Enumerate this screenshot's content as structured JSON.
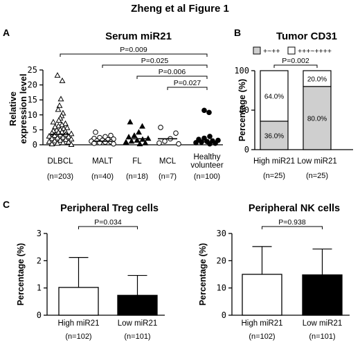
{
  "figure_title": "Zheng et al Figure 1",
  "colors": {
    "black": "#000000",
    "gray": "#cfcfcf",
    "white": "#ffffff"
  },
  "chart_data": [
    {
      "panel": "A",
      "type": "scatter",
      "title": "Serum miR21",
      "ylabel": "Relative expression level",
      "ylim": [
        0,
        25
      ],
      "yticks": [
        "0",
        "5",
        "10",
        "15",
        "20",
        "25"
      ],
      "categories": [
        {
          "label": "DLBCL",
          "n": "(n=203)",
          "marker": "open-triangle",
          "mean": 3.5
        },
        {
          "label": "MALT",
          "n": "(n=40)",
          "marker": "open-circle",
          "mean": 1.2
        },
        {
          "label": "FL",
          "n": "(n=18)",
          "marker": "filled-triangle",
          "mean": 2.0
        },
        {
          "label": "MCL",
          "n": "(n=7)",
          "marker": "open-circle",
          "mean": 2.0
        },
        {
          "label": "Healthy volunteer",
          "label_lines": [
            "Healthy",
            "volunteer"
          ],
          "n": "(n=100)",
          "marker": "filled-circle",
          "mean": 1.0
        }
      ],
      "points": [
        [
          23.2,
          21.4,
          15.3,
          13.1,
          11.8,
          10.6,
          9.7,
          8.9,
          8.2,
          7.6,
          7.1,
          6.7,
          6.3,
          6.0,
          5.7,
          5.4,
          5.1,
          4.9,
          4.7,
          4.5,
          4.3,
          4.1,
          3.9,
          3.7,
          3.5,
          3.3,
          3.1,
          2.9,
          2.7,
          2.5,
          2.3,
          2.1,
          1.9,
          1.7,
          1.5,
          1.3,
          1.1,
          0.9,
          0.7,
          0.5,
          0.3,
          0.1
        ],
        [
          4.2,
          3.1,
          2.7,
          2.4,
          2.1,
          1.9,
          1.7,
          1.5,
          1.3,
          1.2,
          1.0,
          0.9,
          0.7,
          0.5,
          0.3
        ],
        [
          7.6,
          6.2,
          4.2,
          3.1,
          2.6,
          2.1,
          1.8,
          1.5,
          1.2,
          0.9,
          0.6,
          0.3
        ],
        [
          5.8,
          3.9,
          2.0,
          1.2,
          0.6,
          0.3
        ],
        [
          11.5,
          10.8,
          2.8,
          2.2,
          1.8,
          1.5,
          1.3,
          1.1,
          0.9,
          0.7,
          0.5,
          0.3
        ]
      ],
      "comparisons": [
        {
          "from": 0,
          "to": 4,
          "label": "P=0.009"
        },
        {
          "from": 1,
          "to": 4,
          "label": "P=0.025"
        },
        {
          "from": 2,
          "to": 4,
          "label": "P=0.006"
        },
        {
          "from": 3,
          "to": 4,
          "label": "P=0.027"
        }
      ]
    },
    {
      "panel": "B",
      "type": "bar",
      "stacked": true,
      "title": "Tumor CD31",
      "ylabel": "Percentage (%)",
      "ylim": [
        0,
        100
      ],
      "yticks": [
        "0",
        "50",
        "100"
      ],
      "categories": [
        "High miR21",
        "Low miR21"
      ],
      "n_labels": [
        "(n=25)",
        "(n=25)"
      ],
      "series": [
        {
          "name": "+~++",
          "values": [
            36.0,
            80.0
          ],
          "labels": [
            "36.0%",
            "80.0%"
          ],
          "fill": "#cfcfcf"
        },
        {
          "name": "+++~++++",
          "values": [
            64.0,
            20.0
          ],
          "labels": [
            "64.0%",
            "20.0%"
          ],
          "fill": "#ffffff"
        }
      ],
      "pvalue": "P=0.002"
    },
    {
      "panel": "C",
      "type": "bar",
      "title": "Peripheral Treg cells",
      "ylabel": "Percentage (%)",
      "ylim": [
        0,
        3
      ],
      "yticks": [
        "0",
        "1",
        "2",
        "3"
      ],
      "categories": [
        "High miR21",
        "Low miR21"
      ],
      "n_labels": [
        "(n=102)",
        "(n=101)"
      ],
      "values": [
        1.02,
        0.73
      ],
      "errors": [
        1.1,
        0.73
      ],
      "fills": [
        "#ffffff",
        "#000000"
      ],
      "pvalue": "P=0.034"
    },
    {
      "type": "bar",
      "title": "Peripheral NK cells",
      "ylabel": "Percentage (%)",
      "ylim": [
        0,
        30
      ],
      "yticks": [
        "0",
        "10",
        "20",
        "30"
      ],
      "categories": [
        "High miR21",
        "Low miR21"
      ],
      "n_labels": [
        "(n=102)",
        "(n=101)"
      ],
      "values": [
        15.0,
        14.8
      ],
      "errors": [
        10.2,
        9.5
      ],
      "fills": [
        "#ffffff",
        "#000000"
      ],
      "pvalue": "P=0.938"
    }
  ]
}
